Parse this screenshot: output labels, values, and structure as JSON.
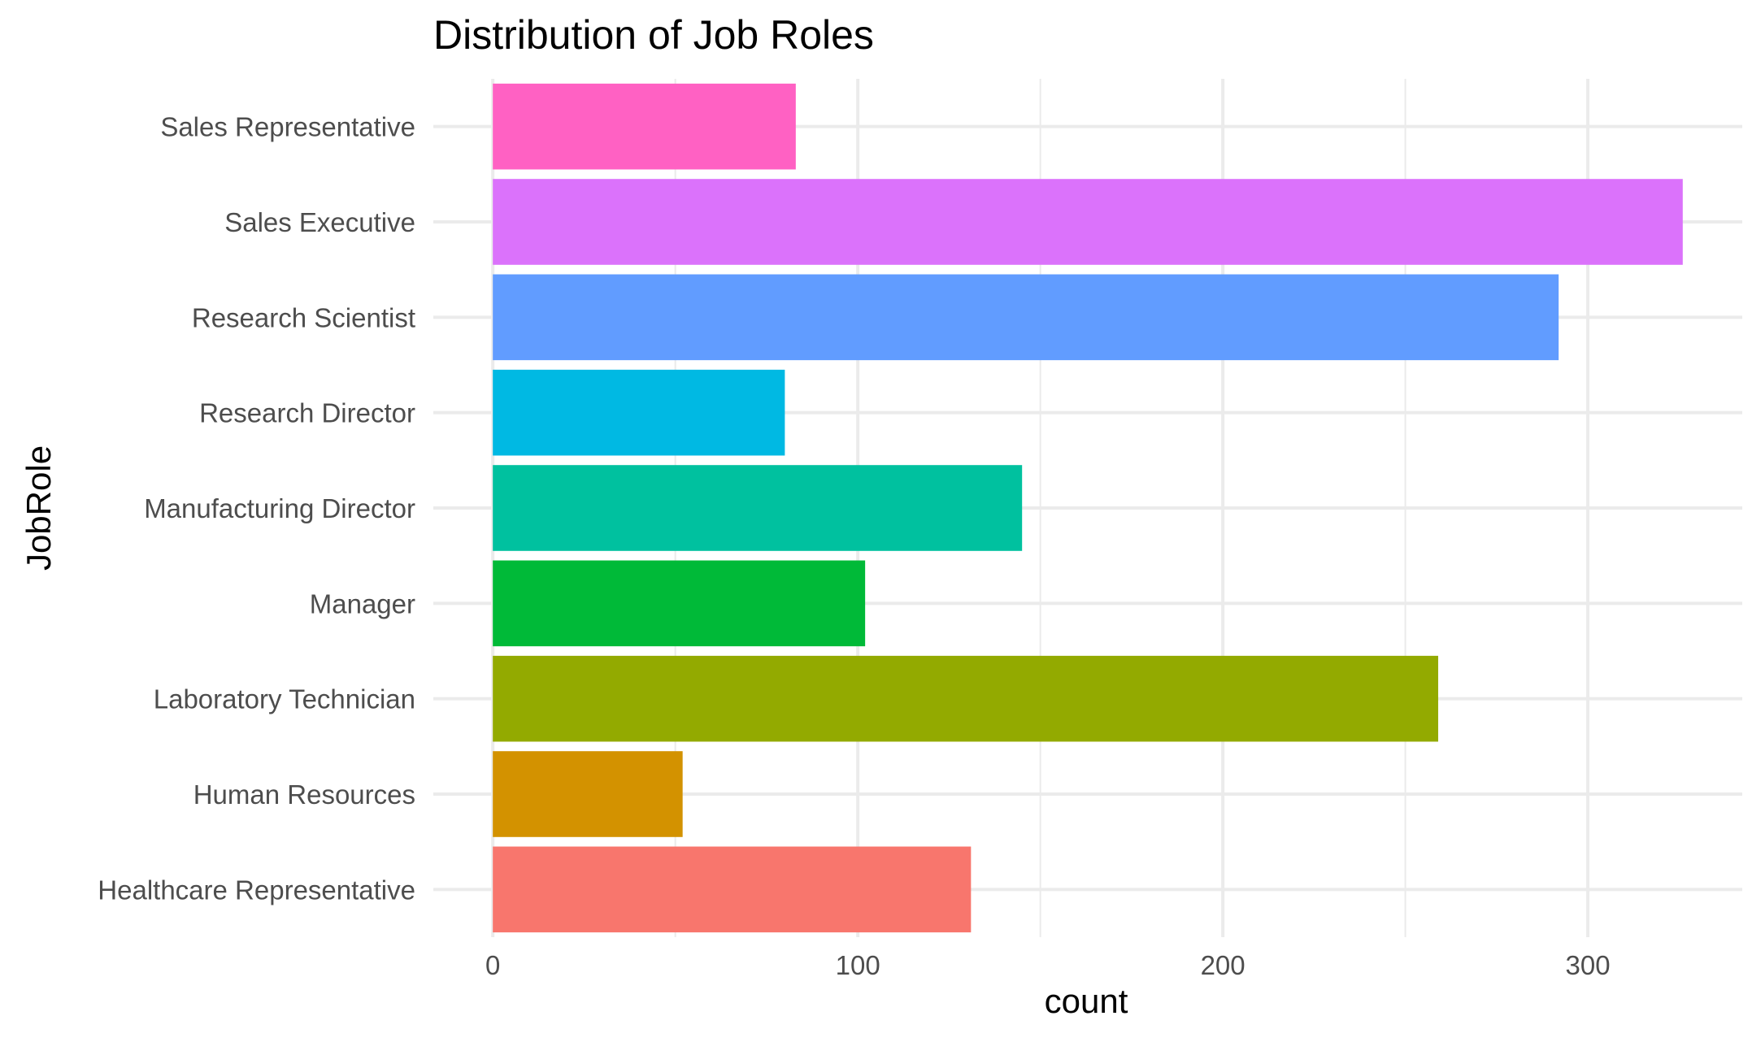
{
  "chart_data": {
    "type": "bar",
    "orientation": "horizontal",
    "title": "Distribution of Job Roles",
    "xlabel": "count",
    "ylabel": "JobRole",
    "categories": [
      "Healthcare Representative",
      "Human Resources",
      "Laboratory Technician",
      "Manager",
      "Manufacturing Director",
      "Research Director",
      "Research Scientist",
      "Sales Executive",
      "Sales Representative"
    ],
    "values": [
      131,
      52,
      259,
      102,
      145,
      80,
      292,
      326,
      83
    ],
    "colors": [
      "#F8766D",
      "#D39200",
      "#93AA00",
      "#00BA38",
      "#00C19F",
      "#00B9E3",
      "#619CFF",
      "#DB72FB",
      "#FF61C3"
    ],
    "x_ticks": [
      0,
      100,
      200,
      300
    ],
    "x_tick_labels": [
      "0",
      "100",
      "200",
      "300"
    ],
    "xlim": [
      -16.3,
      342.3
    ],
    "grid": true,
    "legend": "none"
  }
}
